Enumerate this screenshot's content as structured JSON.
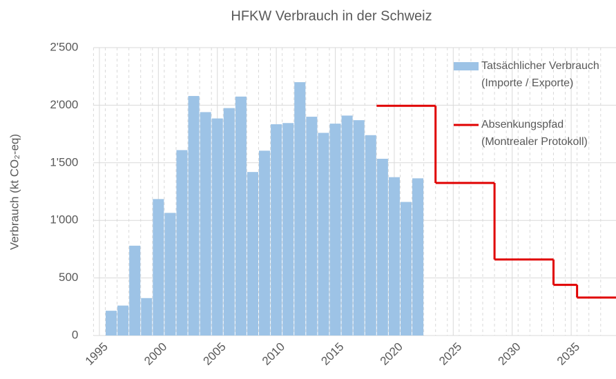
{
  "chart_data": {
    "type": "bar_step",
    "title": "HFKW Verbrauch in der Schweiz",
    "y_label": "Verbrauch (kt CO₂-eq)",
    "xlim": [
      1994.5,
      2038.8
    ],
    "xticks": [
      1995,
      2000,
      2005,
      2010,
      2015,
      2020,
      2025,
      2030,
      2035
    ],
    "ylim": [
      0,
      2500
    ],
    "yticks": [
      0,
      500,
      {
        "value": 1000,
        "label": "1'000"
      },
      {
        "value": 1500,
        "label": "1'500"
      },
      {
        "value": 2000,
        "label": "2'000"
      },
      {
        "value": 2500,
        "label": "2'500"
      }
    ],
    "grid": true,
    "legend": "upper right",
    "series": [
      {
        "name": "Tatsächlicher Verbrauch (Importe / Exporte)",
        "kind": "bar",
        "color": "#9dc3e6",
        "x": [
          1996,
          1997,
          1998,
          1999,
          2000,
          2001,
          2002,
          2003,
          2004,
          2005,
          2006,
          2007,
          2008,
          2009,
          2010,
          2011,
          2012,
          2013,
          2014,
          2015,
          2016,
          2017,
          2018,
          2019,
          2020,
          2021,
          2022
        ],
        "values": [
          215,
          260,
          780,
          325,
          1185,
          1065,
          1610,
          2080,
          1940,
          1885,
          1975,
          2075,
          1420,
          1605,
          1835,
          1845,
          2200,
          1900,
          1760,
          1840,
          1910,
          1870,
          1740,
          1535,
          1375,
          1160,
          1365
        ]
      },
      {
        "name": "Absenkungspfad (Montrealer Protokoll)",
        "kind": "step",
        "color": "#e00000",
        "x": [
          2018.5,
          2023.5,
          2028.5,
          2033.5,
          2035.5
        ],
        "values": [
          1995,
          1325,
          660,
          440,
          330
        ]
      }
    ]
  }
}
